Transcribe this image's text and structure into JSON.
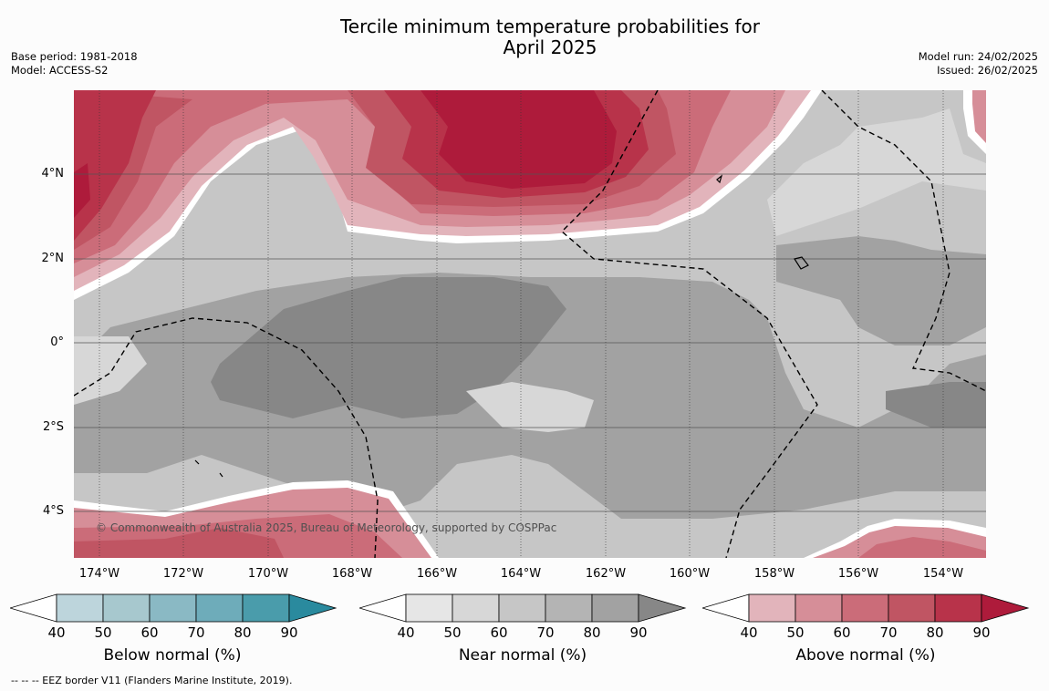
{
  "title": {
    "line1": "Tercile minimum temperature probabilities for",
    "line2": "April 2025"
  },
  "meta_left": {
    "base_period": "Base period: 1981-2018",
    "model": "Model: ACCESS-S2"
  },
  "meta_right": {
    "model_run": "Model run: 24/02/2025",
    "issued": "Issued: 26/02/2025"
  },
  "copyright": "© Commonwealth of Australia 2025, Bureau of Meteorology, supported by COSPPac",
  "x_ticks": [
    "174°W",
    "172°W",
    "170°W",
    "168°W",
    "166°W",
    "164°W",
    "162°W",
    "160°W",
    "158°W",
    "156°W",
    "154°W"
  ],
  "y_ticks": [
    "4°N",
    "2°N",
    "0°",
    "2°S",
    "4°S"
  ],
  "colorbars": [
    {
      "title": "Below normal (%)",
      "ticks": [
        "40",
        "50",
        "60",
        "70",
        "80",
        "90"
      ],
      "colors": [
        "#ffffff",
        "#bdd5dc",
        "#a7c8ce",
        "#8ab9c4",
        "#6eacba",
        "#4a9cab",
        "#2a8a9e"
      ]
    },
    {
      "title": "Near normal (%)",
      "ticks": [
        "40",
        "50",
        "60",
        "70",
        "80",
        "90"
      ],
      "colors": [
        "#ffffff",
        "#e6e6e6",
        "#d7d7d7",
        "#c6c6c6",
        "#b4b4b4",
        "#a2a2a2",
        "#878787"
      ]
    },
    {
      "title": "Above normal (%)",
      "ticks": [
        "40",
        "50",
        "60",
        "70",
        "80",
        "90"
      ],
      "colors": [
        "#ffffff",
        "#e2b4bb",
        "#d68e98",
        "#cb6c79",
        "#c05563",
        "#b8334a",
        "#ae1b3b"
      ]
    }
  ],
  "footer": "--  --  -- EEZ border V11 (Flanders Marine Institute, 2019)."
}
